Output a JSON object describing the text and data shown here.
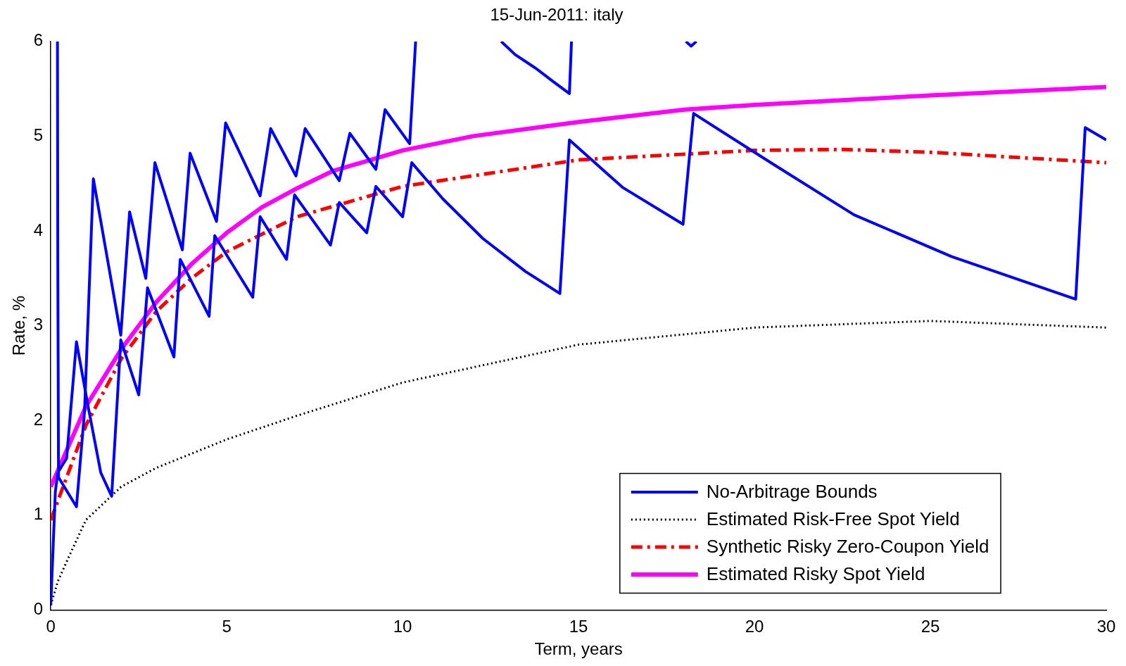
{
  "chart_data": {
    "type": "line",
    "title": "15-Jun-2011: italy",
    "xlabel": "Term, years",
    "ylabel": "Rate, %",
    "xlim": [
      0,
      30
    ],
    "xticks": [
      0,
      5,
      10,
      15,
      20,
      25,
      30
    ],
    "ylim": [
      0,
      6
    ],
    "yticks": [
      0,
      1,
      2,
      3,
      4,
      5,
      6
    ],
    "grid": false,
    "legend": "bottom right",
    "marker": "none",
    "series": [
      {
        "name": "No-Arbitrage Bounds",
        "color": "#0000ff",
        "line_style": "solid",
        "x": [
          0.19,
          0.2,
          0.22,
          0.73,
          0.96,
          1.21,
          1.99,
          2.24,
          2.7,
          2.96,
          3.74,
          3.96,
          4.71,
          4.97,
          5.95,
          6.25,
          6.97,
          7.23,
          8.2,
          8.5,
          9.24,
          9.5,
          10.2,
          10.37,
          11.5,
          12.8,
          13.2,
          13.77,
          14.3,
          14.74,
          14.8,
          16.5,
          18.05,
          18.2,
          18.35
        ],
        "values": [
          6,
          3.7,
          1.4,
          1.09,
          2.1,
          4.55,
          2.9,
          4.2,
          3.5,
          4.72,
          3.8,
          4.82,
          4.1,
          5.14,
          4.37,
          5.08,
          4.58,
          5.08,
          4.53,
          5.03,
          4.65,
          5.28,
          4.92,
          6,
          null,
          6,
          5.86,
          5.72,
          5.57,
          5.45,
          6,
          null,
          6,
          5.95,
          6
        ]
      },
      {
        "color": "#0000ff",
        "line_style": "solid",
        "x": [
          0,
          0.13,
          0.2,
          0.45,
          0.73,
          1.06,
          1.42,
          1.73,
          1.99,
          2.5,
          2.75,
          3.5,
          3.68,
          4.5,
          4.66,
          5.74,
          5.95,
          6.7,
          6.93,
          7.95,
          8.2,
          8.98,
          9.24,
          10.0,
          10.26,
          11.14,
          12.28,
          13.5,
          14.47,
          14.74,
          16.25,
          17.97,
          18.27,
          20.55,
          22.83,
          25.6,
          29.13,
          29.4,
          30
        ],
        "values": [
          0.05,
          1.25,
          1.45,
          1.6,
          2.83,
          2.15,
          1.45,
          1.2,
          2.85,
          2.27,
          3.4,
          2.67,
          3.7,
          3.1,
          3.95,
          3.3,
          4.15,
          3.7,
          4.38,
          3.85,
          4.3,
          3.98,
          4.47,
          4.15,
          4.72,
          4.34,
          3.92,
          3.57,
          3.34,
          4.96,
          4.46,
          4.07,
          5.24,
          4.7,
          4.17,
          3.73,
          3.28,
          5.09,
          4.96
        ]
      },
      {
        "name": "Estimated Risk-Free Spot Yield",
        "color": "#000000",
        "line_style": "dotted",
        "x": [
          0,
          0.2,
          0.5,
          1,
          2,
          3,
          5,
          7,
          10,
          15,
          20,
          25,
          30
        ],
        "values": [
          0.05,
          0.3,
          0.55,
          0.95,
          1.3,
          1.5,
          1.8,
          2.05,
          2.4,
          2.8,
          2.98,
          3.05,
          2.98
        ]
      },
      {
        "name": "Synthetic Risky Zero-Coupon Yield",
        "color": "#ff0000",
        "line_style": "dashed",
        "x": [
          0,
          1,
          2,
          3,
          4,
          5,
          7,
          10,
          15,
          20,
          22.5,
          25,
          30
        ],
        "values": [
          0.95,
          1.95,
          2.65,
          3.15,
          3.5,
          3.78,
          4.15,
          4.47,
          4.75,
          4.85,
          4.86,
          4.83,
          4.72
        ]
      },
      {
        "name": "Estimated Risky Spot Yield",
        "color": "#ff00ff",
        "line_style": "solid",
        "x": [
          0,
          1,
          2,
          3,
          4,
          5,
          6,
          7,
          8,
          10,
          12,
          15,
          18,
          20,
          25,
          30
        ],
        "values": [
          1.3,
          2.15,
          2.75,
          3.25,
          3.65,
          3.98,
          4.25,
          4.45,
          4.63,
          4.85,
          5.0,
          5.15,
          5.28,
          5.33,
          5.43,
          5.52
        ]
      }
    ]
  }
}
